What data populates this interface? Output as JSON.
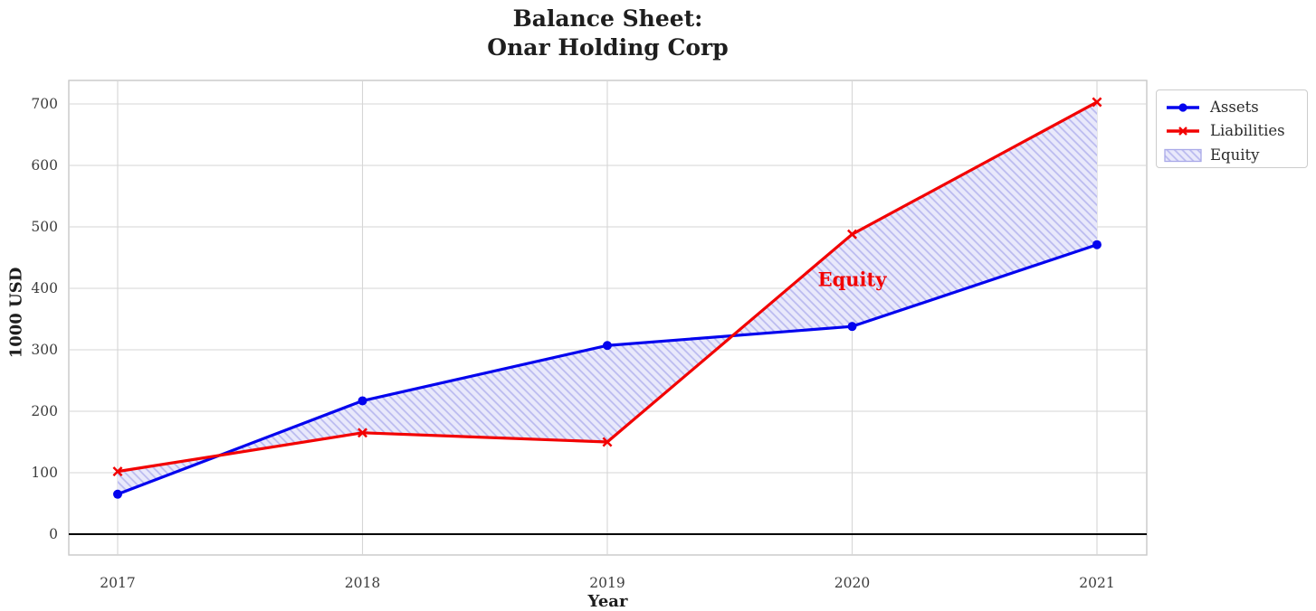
{
  "title": {
    "line1": "Balance Sheet:",
    "line2": "Onar Holding Corp"
  },
  "axes": {
    "x_label": "Year",
    "y_label": "1000 USD"
  },
  "chart_data": {
    "type": "line",
    "x": [
      2017,
      2018,
      2019,
      2020,
      2021
    ],
    "series": [
      {
        "name": "Assets",
        "color": "#0404ee",
        "marker": "circle",
        "values": [
          65,
          217,
          307,
          338,
          471
        ]
      },
      {
        "name": "Liabilities",
        "color": "#f20202",
        "marker": "x",
        "values": [
          102,
          165,
          150,
          488,
          703
        ]
      }
    ],
    "fill_between": {
      "name": "Equity",
      "between": [
        "Assets",
        "Liabilities"
      ],
      "fill_color": "#e9e9fb",
      "hatch_color": "#b9b9ef",
      "hatch": "//"
    },
    "annotation": {
      "text": "Equity",
      "x": 2020,
      "y": 415,
      "color": "#f20202"
    },
    "y_ticks": [
      0,
      100,
      200,
      300,
      400,
      500,
      600,
      700
    ],
    "x_ticks": [
      "2017",
      "2018",
      "2019",
      "2020",
      "2021"
    ],
    "ylim": [
      -37,
      737
    ],
    "xlim": [
      2016.8,
      2021.2
    ],
    "grid": true,
    "grid_color": "#d6d6d6",
    "spine_color": "#c8c8c8",
    "zero_line_color": "#000000",
    "legend_position": "upper-right-outside",
    "title": "Balance Sheet: Onar Holding Corp",
    "xlabel": "Year",
    "ylabel": "1000 USD"
  },
  "legend": {
    "items": [
      {
        "label": "Assets",
        "swatch": "blue-line-circle-marker"
      },
      {
        "label": "Liabilities",
        "swatch": "red-line-x-marker"
      },
      {
        "label": "Equity",
        "swatch": "hatched-patch"
      }
    ]
  }
}
